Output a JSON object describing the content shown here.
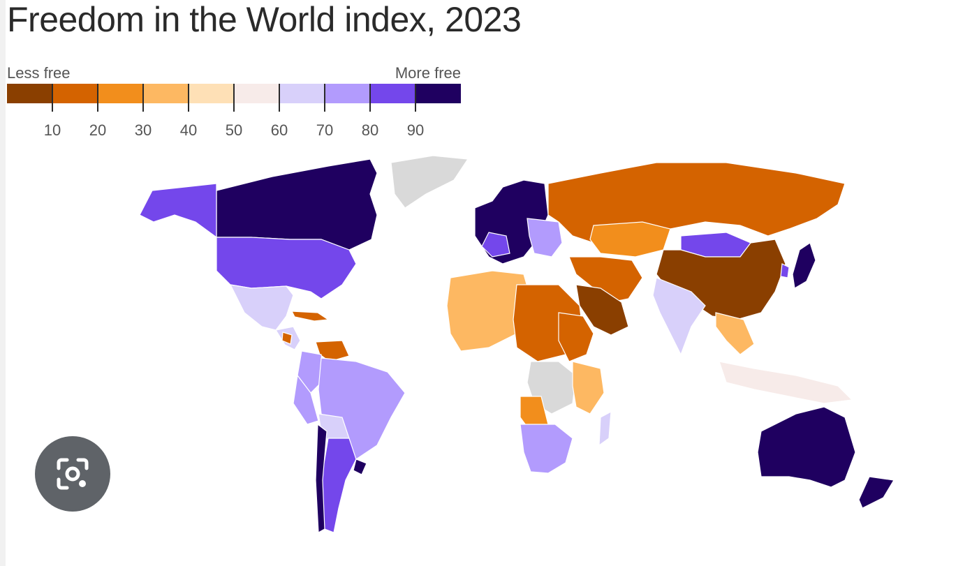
{
  "title": "Freedom in the World index, 2023",
  "legend": {
    "left_label": "Less free",
    "right_label": "More free",
    "colors": [
      "#8a3f00",
      "#d46300",
      "#f28e1c",
      "#fdb862",
      "#fee0b6",
      "#f7ebe9",
      "#d8d0fa",
      "#b29bfd",
      "#7447eb",
      "#1f0060"
    ],
    "ticks": [
      "10",
      "20",
      "30",
      "40",
      "50",
      "60",
      "70",
      "80",
      "90"
    ]
  },
  "no_data_color": "#d9d9d9",
  "regions": [
    {
      "name": "Canada",
      "color": "#1f0060"
    },
    {
      "name": "Alaska",
      "color": "#7447eb"
    },
    {
      "name": "United States",
      "color": "#7447eb"
    },
    {
      "name": "Mexico",
      "color": "#d8d0fa"
    },
    {
      "name": "Greenland",
      "color": "#d9d9d9"
    },
    {
      "name": "Central America",
      "color": "#d8d0fa"
    },
    {
      "name": "Nicaragua",
      "color": "#d46300"
    },
    {
      "name": "Cuba",
      "color": "#d46300"
    },
    {
      "name": "Venezuela",
      "color": "#d46300"
    },
    {
      "name": "Colombia",
      "color": "#b29bfd"
    },
    {
      "name": "Peru",
      "color": "#b29bfd"
    },
    {
      "name": "Brazil",
      "color": "#b29bfd"
    },
    {
      "name": "Bolivia",
      "color": "#d8d0fa"
    },
    {
      "name": "Argentina",
      "color": "#7447eb"
    },
    {
      "name": "Chile",
      "color": "#1f0060"
    },
    {
      "name": "Uruguay",
      "color": "#1f0060"
    },
    {
      "name": "Western Europe",
      "color": "#1f0060"
    },
    {
      "name": "France",
      "color": "#7447eb"
    },
    {
      "name": "Eastern Europe",
      "color": "#b29bfd"
    },
    {
      "name": "Russia",
      "color": "#d46300"
    },
    {
      "name": "Kazakhstan",
      "color": "#f28e1c"
    },
    {
      "name": "Mongolia",
      "color": "#7447eb"
    },
    {
      "name": "China",
      "color": "#8a3f00"
    },
    {
      "name": "Japan",
      "color": "#1f0060"
    },
    {
      "name": "South Korea",
      "color": "#7447eb"
    },
    {
      "name": "India",
      "color": "#d8d0fa"
    },
    {
      "name": "Middle East",
      "color": "#d46300"
    },
    {
      "name": "Saudi Arabia",
      "color": "#8a3f00"
    },
    {
      "name": "Southeast Asia",
      "color": "#fdb862"
    },
    {
      "name": "Indonesia",
      "color": "#f7ebe9"
    },
    {
      "name": "Australia",
      "color": "#1f0060"
    },
    {
      "name": "New Zealand",
      "color": "#1f0060"
    },
    {
      "name": "North Africa",
      "color": "#fdb862"
    },
    {
      "name": "Sahel",
      "color": "#d46300"
    },
    {
      "name": "Sudan",
      "color": "#d46300"
    },
    {
      "name": "Central Africa",
      "color": "#d9d9d9"
    },
    {
      "name": "Angola",
      "color": "#f28e1c"
    },
    {
      "name": "Southern Africa",
      "color": "#b29bfd"
    },
    {
      "name": "East Africa",
      "color": "#fdb862"
    },
    {
      "name": "Madagascar",
      "color": "#d8d0fa"
    }
  ],
  "lens_icon": "google-lens-icon"
}
